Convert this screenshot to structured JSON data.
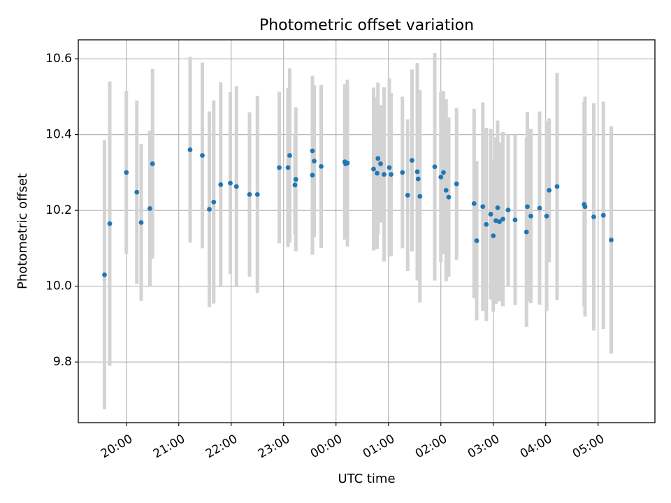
{
  "chart_data": {
    "type": "scatter",
    "title": "Photometric offset variation",
    "xlabel": "UTC time",
    "ylabel": "Photometric offset",
    "grid": true,
    "x_unit": "UTC time",
    "xlim": [
      "19:05",
      "06:05 (+1d)"
    ],
    "ylim": [
      9.64,
      10.65
    ],
    "x_ticks": [
      "20:00",
      "21:00",
      "22:00",
      "23:00",
      "00:00",
      "01:00",
      "02:00",
      "03:00",
      "04:00",
      "05:00"
    ],
    "y_ticks": [
      "9.8",
      "10.0",
      "10.2",
      "10.4",
      "10.6"
    ],
    "colors": {
      "marker": "#1f77b4",
      "errorbar": "#d3d3d3"
    },
    "series": [
      {
        "x": [
          "19:35",
          "19:41",
          "20:00",
          "20:12",
          "20:17",
          "20:27",
          "20:30",
          "21:13",
          "21:27",
          "21:35",
          "21:40",
          "21:48",
          "21:59",
          "22:06",
          "22:21",
          "22:30",
          "22:55",
          "23:05",
          "23:07",
          "23:13",
          "23:14",
          "23:33",
          "23:33",
          "23:35",
          "23:43",
          "00:10",
          "00:11",
          "00:13",
          "00:43",
          "00:47",
          "00:48",
          "00:51",
          "00:55",
          "01:01",
          "01:03",
          "01:16",
          "01:22",
          "01:27",
          "01:33",
          "01:34",
          "01:36",
          "01:53",
          "02:00",
          "02:03",
          "02:06",
          "02:09",
          "02:18",
          "02:38",
          "02:41",
          "02:48",
          "02:52",
          "02:57",
          "03:00",
          "03:03",
          "03:05",
          "03:07",
          "03:11",
          "03:17",
          "03:25",
          "03:38",
          "03:39",
          "03:43",
          "03:53",
          "04:01",
          "04:04",
          "04:13",
          "04:44",
          "04:45",
          "04:55",
          "05:06",
          "05:15"
        ],
        "y": [
          10.03,
          10.165,
          10.3,
          10.248,
          10.168,
          10.205,
          10.323,
          10.36,
          10.345,
          10.203,
          10.222,
          10.268,
          10.272,
          10.263,
          10.242,
          10.242,
          10.313,
          10.313,
          10.345,
          10.267,
          10.282,
          10.293,
          10.357,
          10.33,
          10.316,
          10.328,
          10.323,
          10.325,
          10.309,
          10.298,
          10.337,
          10.323,
          10.295,
          10.313,
          10.295,
          10.3,
          10.24,
          10.332,
          10.302,
          10.283,
          10.237,
          10.315,
          10.288,
          10.3,
          10.253,
          10.235,
          10.27,
          10.218,
          10.12,
          10.21,
          10.163,
          10.19,
          10.133,
          10.173,
          10.207,
          10.17,
          10.177,
          10.201,
          10.175,
          10.143,
          10.21,
          10.185,
          10.206,
          10.185,
          10.253,
          10.263,
          10.216,
          10.21,
          10.183,
          10.187,
          10.122
        ],
        "yerr": [
          0.355,
          0.375,
          0.215,
          0.242,
          0.207,
          0.205,
          0.25,
          0.245,
          0.245,
          0.258,
          0.268,
          0.27,
          0.24,
          0.265,
          0.217,
          0.26,
          0.2,
          0.21,
          0.23,
          0.13,
          0.19,
          0.21,
          0.198,
          0.2,
          0.215,
          0.205,
          0.195,
          0.22,
          0.215,
          0.2,
          0.2,
          0.155,
          0.23,
          0.235,
          0.215,
          0.2,
          0.2,
          0.24,
          0.287,
          0.18,
          0.28,
          0.3,
          0.225,
          0.215,
          0.24,
          0.21,
          0.2,
          0.25,
          0.21,
          0.275,
          0.255,
          0.225,
          0.2,
          0.22,
          0.23,
          0.21,
          0.23,
          0.2,
          0.225,
          0.25,
          0.25,
          0.23,
          0.255,
          0.25,
          0.19,
          0.3,
          0.27,
          0.29,
          0.3,
          0.3,
          0.3
        ]
      }
    ]
  }
}
